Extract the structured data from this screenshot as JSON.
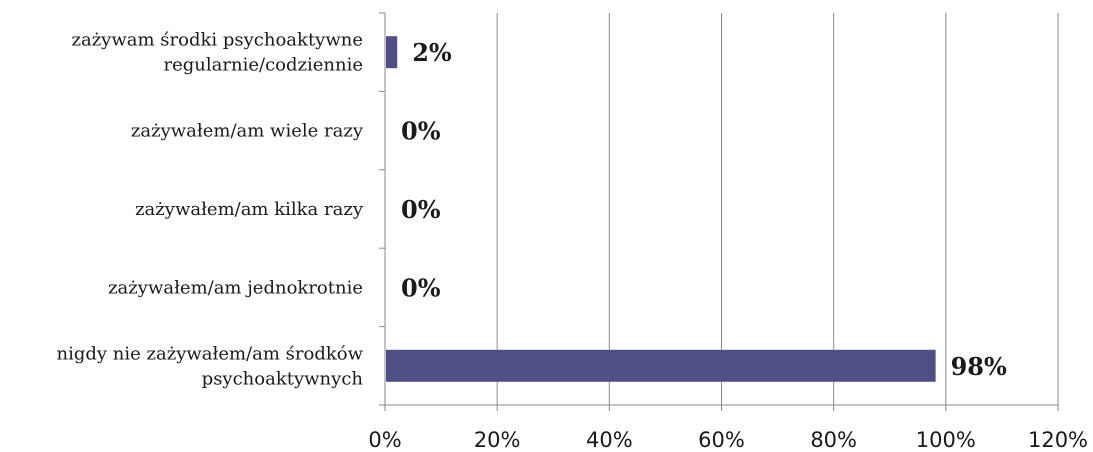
{
  "chart_data": {
    "type": "bar",
    "orientation": "horizontal",
    "categories": [
      [
        "zażywam środki psychoaktywne",
        "regularnie/codziennie"
      ],
      [
        "zażywałem/am wiele razy"
      ],
      [
        "zażywałem/am kilka razy"
      ],
      [
        "zażywałem/am jednokrotnie"
      ],
      [
        "nigdy nie zażywałem/am środków",
        "psychoaktywnych"
      ]
    ],
    "values": [
      2,
      0,
      0,
      0,
      98
    ],
    "data_labels": [
      "2%",
      "0%",
      "0%",
      "0%",
      "98%"
    ],
    "xlim": [
      0,
      120
    ],
    "x_ticks": [
      0,
      20,
      40,
      60,
      80,
      100,
      120
    ],
    "x_tick_labels": [
      "0%",
      "20%",
      "40%",
      "60%",
      "80%",
      "100%",
      "120%"
    ],
    "grid": "vertical",
    "legend": "none",
    "bar_color": "#4f4f85",
    "title": "",
    "xlabel": "",
    "ylabel": ""
  }
}
